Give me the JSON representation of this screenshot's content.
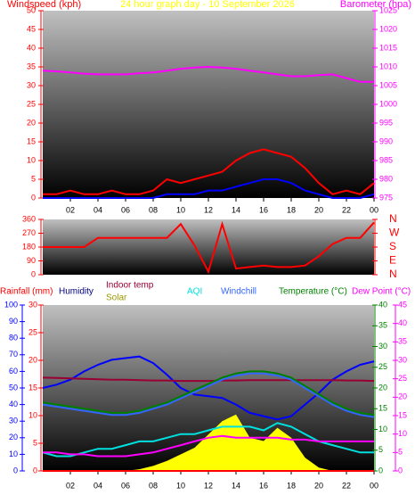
{
  "chart_data": [
    {
      "type": "line",
      "title": "24 hour graph day - 10 September 2026",
      "ylabel": "Windspeed (kph)",
      "y2label": "Barometer (hpa)",
      "ycolor": "#ff0000",
      "y2color": "#ff00ff",
      "x": [
        0,
        1,
        2,
        3,
        4,
        5,
        6,
        7,
        8,
        9,
        10,
        11,
        12,
        13,
        14,
        15,
        16,
        17,
        18,
        19,
        20,
        21,
        22,
        23,
        24
      ],
      "xlim": [
        0,
        24
      ],
      "xticks": [
        {
          "value": 2,
          "label": "02"
        },
        {
          "value": 4,
          "label": "04"
        },
        {
          "value": 6,
          "label": "06"
        },
        {
          "value": 8,
          "label": "08"
        },
        10,
        12,
        14,
        16,
        18,
        20,
        22,
        {
          "value": 24,
          "label": "00"
        }
      ],
      "ylim": [
        0,
        50
      ],
      "yticks": [
        0,
        5,
        10,
        15,
        20,
        25,
        30,
        35,
        40,
        45,
        50
      ],
      "y2lim": [
        975,
        1025
      ],
      "y2ticks": [
        975,
        980,
        985,
        990,
        995,
        1000,
        1005,
        1010,
        1015,
        1020,
        1025
      ],
      "series": [
        {
          "color": "#ff0000",
          "values": [
            1,
            1,
            2,
            1,
            1,
            2,
            1,
            1,
            2,
            5,
            4,
            5,
            6,
            7,
            10,
            12,
            13,
            12,
            11,
            8,
            4,
            1,
            2,
            1,
            4
          ]
        },
        {
          "color": "#0000ff",
          "values": [
            0,
            0,
            0,
            0,
            0,
            0,
            0,
            0,
            0,
            1,
            1,
            1,
            2,
            2,
            3,
            4,
            5,
            5,
            4,
            2,
            1,
            0,
            0,
            0,
            1
          ]
        },
        {
          "color": "#ff00ff",
          "axis": "y2",
          "values": [
            1009,
            1008.8,
            1008.5,
            1008.2,
            1008,
            1008,
            1008,
            1008.3,
            1008.5,
            1009,
            1009.5,
            1009.8,
            1010,
            1009.8,
            1009.5,
            1009,
            1008.5,
            1008,
            1007.5,
            1007.5,
            1007.8,
            1008,
            1007,
            1006,
            1006
          ]
        }
      ]
    },
    {
      "type": "line",
      "ycolor": "#ff0000",
      "y2color": "#ff0000",
      "x": [
        0,
        1,
        2,
        3,
        4,
        5,
        6,
        7,
        8,
        9,
        10,
        11,
        12,
        13,
        14,
        15,
        16,
        17,
        18,
        19,
        20,
        21,
        22,
        23,
        24
      ],
      "xlim": [
        0,
        24
      ],
      "ylim": [
        0,
        360
      ],
      "yticks": [
        0,
        90,
        180,
        270,
        360
      ],
      "y2lim": [
        0,
        360
      ],
      "y2ticks": [
        {
          "value": 0,
          "label": "N"
        },
        {
          "value": 90,
          "label": "E"
        },
        {
          "value": 180,
          "label": "S"
        },
        {
          "value": 270,
          "label": "W"
        },
        {
          "value": 360,
          "label": "N"
        }
      ],
      "series": [
        {
          "color": "#ff0000",
          "values": [
            180,
            180,
            180,
            180,
            240,
            240,
            240,
            240,
            240,
            240,
            330,
            190,
            20,
            330,
            40,
            50,
            60,
            50,
            50,
            60,
            120,
            200,
            240,
            240,
            340
          ]
        }
      ]
    },
    {
      "type": "line",
      "ycolor": "#0000ff",
      "y2color": "#008000",
      "y3color": "#ff0000",
      "y4color": "#ff00ff",
      "x": [
        0,
        1,
        2,
        3,
        4,
        5,
        6,
        7,
        8,
        9,
        10,
        11,
        12,
        13,
        14,
        15,
        16,
        17,
        18,
        19,
        20,
        21,
        22,
        23,
        24
      ],
      "xlim": [
        0,
        24
      ],
      "xticks": [
        {
          "value": 2,
          "label": "02"
        },
        {
          "value": 4,
          "label": "04"
        },
        {
          "value": 6,
          "label": "06"
        },
        {
          "value": 8,
          "label": "08"
        },
        10,
        12,
        14,
        16,
        18,
        20,
        22,
        {
          "value": 24,
          "label": "00"
        }
      ],
      "ylim": [
        0,
        100
      ],
      "yticks": [
        0,
        10,
        20,
        30,
        40,
        50,
        60,
        70,
        80,
        90,
        100
      ],
      "y2lim": [
        0,
        40
      ],
      "y2ticks": [
        0,
        5,
        10,
        15,
        20,
        25,
        30,
        35,
        40
      ],
      "y3lim": [
        0,
        30
      ],
      "y3ticks": [
        0,
        5,
        10,
        15,
        20,
        25,
        30
      ],
      "y4lim": [
        0,
        45
      ],
      "y4ticks": [
        0,
        5,
        10,
        15,
        20,
        25,
        30,
        35,
        40,
        45
      ],
      "series": [
        {
          "name": "Solar",
          "color": "#ffff00",
          "area": true,
          "axis": "y",
          "values": [
            0,
            0,
            0,
            0,
            0,
            0,
            0,
            1,
            3,
            6,
            10,
            14,
            22,
            30,
            34,
            20,
            18,
            26,
            20,
            8,
            2,
            0,
            0,
            0,
            0
          ]
        },
        {
          "name": "Rainfall (mm)",
          "color": "#ff0000",
          "axis": "y3",
          "values": [
            0,
            0,
            0,
            0,
            0,
            0,
            0,
            0,
            0,
            0,
            0,
            0,
            0,
            0,
            0,
            0,
            0,
            0,
            0,
            0,
            0,
            0,
            0,
            0,
            0
          ]
        },
        {
          "name": "Humidity",
          "color": "#0000ff",
          "axis": "y",
          "values": [
            50,
            52,
            55,
            60,
            64,
            67,
            68,
            69,
            65,
            58,
            50,
            46,
            45,
            44,
            40,
            35,
            33,
            31,
            33,
            40,
            47,
            55,
            60,
            64,
            66
          ]
        },
        {
          "name": "Indoor temp",
          "color": "#990033",
          "axis": "y2",
          "values": [
            22.5,
            22.4,
            22.3,
            22.2,
            22.1,
            22,
            22,
            21.9,
            21.8,
            21.8,
            21.7,
            21.7,
            21.7,
            21.8,
            21.8,
            21.9,
            21.9,
            21.9,
            21.9,
            21.9,
            21.9,
            21.9,
            21.8,
            21.8,
            21.7
          ]
        },
        {
          "name": "AQI",
          "color": "#00e0e0",
          "axis": "y4",
          "values": [
            5,
            4,
            4,
            5,
            6,
            6,
            7,
            8,
            8,
            9,
            10,
            10,
            11,
            12,
            12,
            12,
            11,
            13,
            12,
            10,
            8,
            7,
            6,
            5,
            5
          ]
        },
        {
          "name": "Windchill",
          "color": "#3366ff",
          "axis": "y2",
          "values": [
            16,
            15.5,
            15,
            14.5,
            14,
            13.5,
            13.5,
            14,
            15,
            16,
            17.5,
            19,
            20.5,
            22,
            23,
            23.5,
            23.5,
            23,
            22,
            20,
            18,
            16,
            14.5,
            13.5,
            13
          ]
        },
        {
          "name": "Temperature (°C)",
          "color": "#008000",
          "axis": "y2",
          "values": [
            16.5,
            16,
            15.5,
            15,
            14.5,
            14,
            14,
            14.5,
            15.5,
            16.5,
            18,
            19.5,
            21,
            22.5,
            23.5,
            24,
            24,
            23.5,
            22.5,
            20.5,
            18.5,
            16.5,
            15,
            14,
            13.5
          ]
        },
        {
          "name": "Dew Point (°C)",
          "color": "#ff00ff",
          "axis": "y4",
          "values": [
            5,
            5,
            4.5,
            4.5,
            4,
            4,
            4,
            4.5,
            5,
            6,
            7,
            8,
            9,
            9.5,
            9,
            9,
            9,
            9,
            8.5,
            8.5,
            8,
            8,
            8,
            8,
            8
          ]
        }
      ]
    }
  ]
}
